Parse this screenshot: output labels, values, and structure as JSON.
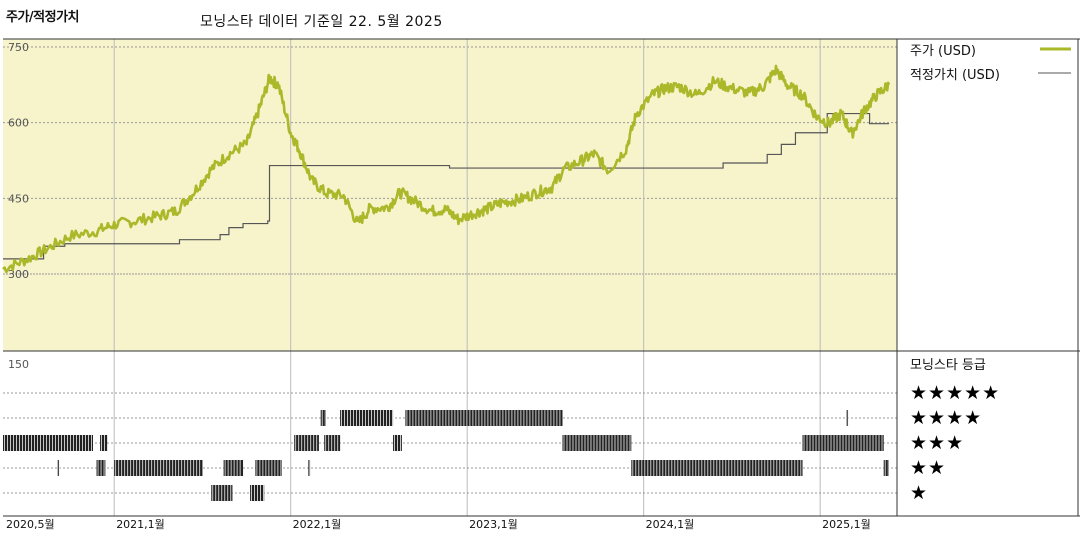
{
  "header": {
    "title": "주가/적정가치",
    "subtitle": "모닝스타 데이터 기준일 22. 5월 2025"
  },
  "colors": {
    "plot_bg": "#f7f4cc",
    "price": "#aab82a",
    "fair_value": "#555555",
    "grid": "#999999",
    "rating_bar": "#222222"
  },
  "chart_data": [
    {
      "type": "line",
      "ylim": [
        300,
        750
      ],
      "yticks": [
        "750",
        "600",
        "450",
        "300"
      ],
      "x_labels": [
        "2020,5월",
        "2021,1월",
        "2022,1월",
        "2023,1월",
        "2024,1월",
        "2025,1월"
      ],
      "x_label_dates": [
        2020.37,
        2021.0,
        2022.0,
        2023.0,
        2024.0,
        2025.0
      ],
      "xlim": [
        2020.37,
        2025.39
      ],
      "series": [
        {
          "name": "주가 (USD)",
          "points": [
            [
              2020.37,
              310
            ],
            [
              2020.5,
              328
            ],
            [
              2020.62,
              350
            ],
            [
              2020.75,
              375
            ],
            [
              2020.9,
              385
            ],
            [
              2021.0,
              398
            ],
            [
              2021.12,
              405
            ],
            [
              2021.25,
              415
            ],
            [
              2021.35,
              425
            ],
            [
              2021.45,
              462
            ],
            [
              2021.55,
              508
            ],
            [
              2021.65,
              538
            ],
            [
              2021.75,
              558
            ],
            [
              2021.82,
              625
            ],
            [
              2021.88,
              688
            ],
            [
              2021.93,
              675
            ],
            [
              2022.0,
              580
            ],
            [
              2022.05,
              545
            ],
            [
              2022.12,
              485
            ],
            [
              2022.2,
              460
            ],
            [
              2022.3,
              455
            ],
            [
              2022.38,
              400
            ],
            [
              2022.45,
              430
            ],
            [
              2022.55,
              432
            ],
            [
              2022.62,
              462
            ],
            [
              2022.7,
              445
            ],
            [
              2022.8,
              425
            ],
            [
              2022.88,
              428
            ],
            [
              2022.95,
              408
            ],
            [
              2023.05,
              422
            ],
            [
              2023.12,
              430
            ],
            [
              2023.2,
              442
            ],
            [
              2023.3,
              448
            ],
            [
              2023.4,
              462
            ],
            [
              2023.48,
              472
            ],
            [
              2023.55,
              508
            ],
            [
              2023.65,
              525
            ],
            [
              2023.72,
              538
            ],
            [
              2023.8,
              505
            ],
            [
              2023.9,
              548
            ],
            [
              2023.96,
              618
            ],
            [
              2024.05,
              655
            ],
            [
              2024.12,
              668
            ],
            [
              2024.2,
              672
            ],
            [
              2024.3,
              655
            ],
            [
              2024.4,
              682
            ],
            [
              2024.5,
              668
            ],
            [
              2024.6,
              658
            ],
            [
              2024.68,
              672
            ],
            [
              2024.75,
              705
            ],
            [
              2024.82,
              672
            ],
            [
              2024.9,
              655
            ],
            [
              2024.98,
              612
            ],
            [
              2025.05,
              598
            ],
            [
              2025.12,
              618
            ],
            [
              2025.18,
              578
            ],
            [
              2025.25,
              625
            ],
            [
              2025.32,
              655
            ],
            [
              2025.39,
              675
            ]
          ]
        },
        {
          "name": "적정가치 (USD)",
          "steps": [
            [
              2020.37,
              330
            ],
            [
              2020.6,
              355
            ],
            [
              2020.72,
              360
            ],
            [
              2021.37,
              368
            ],
            [
              2021.6,
              378
            ],
            [
              2021.65,
              392
            ],
            [
              2021.73,
              400
            ],
            [
              2021.87,
              405
            ],
            [
              2021.88,
              515
            ],
            [
              2022.9,
              510
            ],
            [
              2023.65,
              510
            ],
            [
              2024.45,
              520
            ],
            [
              2024.7,
              537
            ],
            [
              2024.78,
              557
            ],
            [
              2024.86,
              580
            ],
            [
              2025.04,
              618
            ],
            [
              2025.28,
              598
            ]
          ]
        }
      ]
    },
    {
      "type": "bar",
      "title": "모닝스타 등급",
      "ytick": "150",
      "rating_labels": [
        "★★★★★",
        "★★★★",
        "★★★",
        "★★",
        "★"
      ],
      "segments": [
        {
          "stars": 3,
          "from": 2020.37,
          "to": 2020.88
        },
        {
          "stars": 3,
          "from": 2020.92,
          "to": 2020.96
        },
        {
          "stars": 2,
          "from": 2020.68,
          "to": 2020.69
        },
        {
          "stars": 2,
          "from": 2020.9,
          "to": 2020.95
        },
        {
          "stars": 2,
          "from": 2021.0,
          "to": 2021.5
        },
        {
          "stars": 1,
          "from": 2021.55,
          "to": 2021.67
        },
        {
          "stars": 2,
          "from": 2021.62,
          "to": 2021.73
        },
        {
          "stars": 1,
          "from": 2021.77,
          "to": 2021.85
        },
        {
          "stars": 2,
          "from": 2021.8,
          "to": 2021.95
        },
        {
          "stars": 2,
          "from": 2022.1,
          "to": 2022.11
        },
        {
          "stars": 3,
          "from": 2022.02,
          "to": 2022.16
        },
        {
          "stars": 4,
          "from": 2022.17,
          "to": 2022.2
        },
        {
          "stars": 3,
          "from": 2022.19,
          "to": 2022.28
        },
        {
          "stars": 4,
          "from": 2022.28,
          "to": 2022.58
        },
        {
          "stars": 3,
          "from": 2022.58,
          "to": 2022.63
        },
        {
          "stars": 4,
          "from": 2022.65,
          "to": 2023.54
        },
        {
          "stars": 3,
          "from": 2023.54,
          "to": 2023.93
        },
        {
          "stars": 2,
          "from": 2023.93,
          "to": 2024.9
        },
        {
          "stars": 3,
          "from": 2024.9,
          "to": 2025.36
        },
        {
          "stars": 4,
          "from": 2025.15,
          "to": 2025.16
        },
        {
          "stars": 2,
          "from": 2025.36,
          "to": 2025.39
        }
      ]
    }
  ]
}
